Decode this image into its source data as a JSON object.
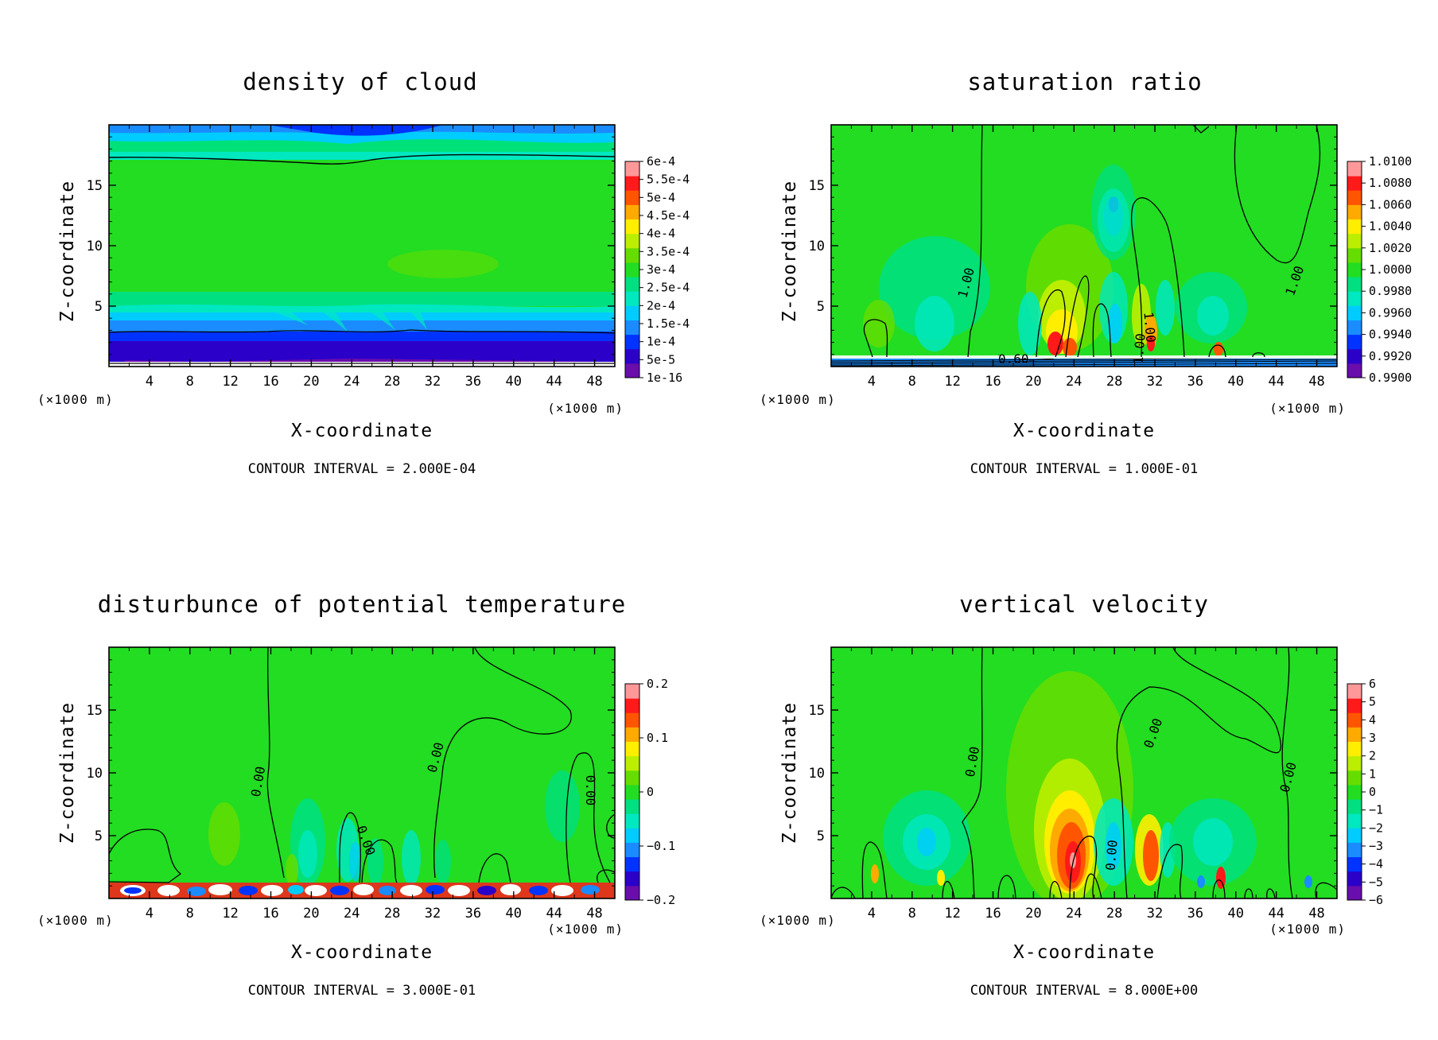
{
  "chart_data": [
    {
      "type": "heatmap",
      "title": "density of cloud",
      "xlabel": "X-coordinate",
      "ylabel": "Z-coordinate",
      "x_unit": "(×1000 m)",
      "xlim": [
        0,
        50
      ],
      "ylim": [
        0,
        20
      ],
      "xticks": [
        4,
        8,
        12,
        16,
        20,
        24,
        28,
        32,
        36,
        40,
        44,
        48
      ],
      "yticks": [
        5,
        10,
        15
      ],
      "contour_interval": "CONTOUR INTERVAL = 2.000E-04",
      "colorbar_ticks": [
        "6e-4",
        "5.5e-4",
        "5e-4",
        "4.5e-4",
        "4e-4",
        "3.5e-4",
        "3e-4",
        "2.5e-4",
        "2e-4",
        "1.5e-4",
        "1e-4",
        "5e-5",
        "1e-16"
      ],
      "contour_labels": []
    },
    {
      "type": "heatmap",
      "title": "saturation ratio",
      "xlabel": "X-coordinate",
      "ylabel": "Z-coordinate",
      "x_unit": "(×1000 m)",
      "xlim": [
        0,
        50
      ],
      "ylim": [
        0,
        20
      ],
      "xticks": [
        4,
        8,
        12,
        16,
        20,
        24,
        28,
        32,
        36,
        40,
        44,
        48
      ],
      "yticks": [
        5,
        10,
        15
      ],
      "contour_interval": "CONTOUR INTERVAL = 1.000E-01",
      "colorbar_ticks": [
        "1.0100",
        "1.0080",
        "1.0060",
        "1.0040",
        "1.0020",
        "1.0000",
        "0.9980",
        "0.9960",
        "0.9940",
        "0.9920",
        "0.9900"
      ],
      "contour_labels": [
        "1.00",
        "1.00",
        "1.00",
        "1.00",
        "0.60"
      ]
    },
    {
      "type": "heatmap",
      "title": "disturbunce of potential temperature",
      "xlabel": "X-coordinate",
      "ylabel": "Z-coordinate",
      "x_unit": "(×1000 m)",
      "xlim": [
        0,
        50
      ],
      "ylim": [
        0,
        20
      ],
      "xticks": [
        4,
        8,
        12,
        16,
        20,
        24,
        28,
        32,
        36,
        40,
        44,
        48
      ],
      "yticks": [
        5,
        10,
        15
      ],
      "contour_interval": "CONTOUR INTERVAL = 3.000E-01",
      "colorbar_ticks": [
        "0.2",
        "0.1",
        "0",
        "−0.1",
        "−0.2"
      ],
      "contour_labels": [
        "0.00",
        "0.00",
        "0.00",
        "0.00"
      ]
    },
    {
      "type": "heatmap",
      "title": "vertical velocity",
      "xlabel": "X-coordinate",
      "ylabel": "Z-coordinate",
      "x_unit": "(×1000 m)",
      "xlim": [
        0,
        50
      ],
      "ylim": [
        0,
        20
      ],
      "xticks": [
        4,
        8,
        12,
        16,
        20,
        24,
        28,
        32,
        36,
        40,
        44,
        48
      ],
      "yticks": [
        5,
        10,
        15
      ],
      "contour_interval": "CONTOUR INTERVAL = 8.000E+00",
      "colorbar_ticks": [
        "6",
        "5",
        "4",
        "3",
        "2",
        "1",
        "0",
        "−1",
        "−2",
        "−3",
        "−4",
        "−5",
        "−6"
      ],
      "contour_labels": [
        "0.00",
        "0.00",
        "0.00",
        "0.00"
      ]
    }
  ],
  "colorscale": [
    "#6a0dad",
    "#2b00c8",
    "#0033ff",
    "#1a8cff",
    "#00ccff",
    "#00e8c0",
    "#00e080",
    "#22dd22",
    "#66dd00",
    "#bbee00",
    "#ffee00",
    "#ffaa00",
    "#ff5500",
    "#ff1a1a",
    "#ff9999"
  ]
}
